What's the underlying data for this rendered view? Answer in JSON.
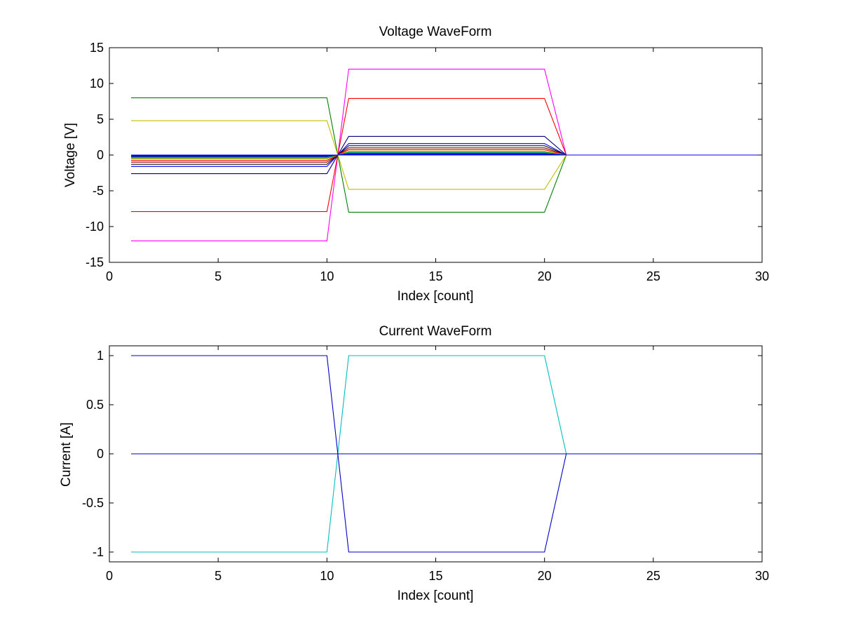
{
  "chart_data": [
    {
      "type": "line",
      "title": "Voltage WaveForm",
      "xlabel": "Index [count]",
      "ylabel": "Voltage [V]",
      "xlim": [
        0,
        30
      ],
      "ylim": [
        -15,
        15
      ],
      "xticks": [
        "0",
        "5",
        "10",
        "15",
        "20",
        "25",
        "30"
      ],
      "yticks": [
        "-15",
        "-10",
        "-5",
        "0",
        "5",
        "10",
        "15"
      ],
      "x": [
        1,
        10,
        10.5,
        11,
        20,
        21,
        30
      ],
      "grid": false,
      "series": [
        {
          "color": "#FF00FF",
          "values": [
            -12,
            -12,
            0,
            12,
            12,
            0,
            0
          ]
        },
        {
          "color": "#FF0000",
          "values": [
            -7.9,
            -7.9,
            0,
            7.9,
            7.9,
            0,
            0
          ]
        },
        {
          "color": "#008000",
          "values": [
            8,
            8,
            0,
            -8,
            -8,
            0,
            0
          ]
        },
        {
          "color": "#BFBF00",
          "values": [
            4.8,
            4.8,
            0,
            -4.8,
            -4.8,
            0,
            0
          ]
        },
        {
          "color": "#000080",
          "values": [
            -2.6,
            -2.6,
            0,
            2.6,
            2.6,
            0,
            0
          ]
        },
        {
          "color": "#0000FF",
          "values": [
            -1.6,
            -1.6,
            0,
            1.6,
            1.6,
            0,
            0
          ]
        },
        {
          "color": "#000000",
          "values": [
            -1.3,
            -1.3,
            0,
            1.3,
            1.3,
            0,
            0
          ]
        },
        {
          "color": "#800000",
          "values": [
            -1.0,
            -1.0,
            0,
            1.0,
            1.0,
            0,
            0
          ]
        },
        {
          "color": "#FF0000",
          "values": [
            -0.75,
            -0.75,
            0,
            0.75,
            0.75,
            0,
            0
          ]
        },
        {
          "color": "#BFBF00",
          "values": [
            -0.55,
            -0.55,
            0,
            0.55,
            0.55,
            0,
            0
          ]
        },
        {
          "color": "#008000",
          "values": [
            -0.4,
            -0.4,
            0,
            0.4,
            0.4,
            0,
            0
          ]
        },
        {
          "color": "#00BFBF",
          "values": [
            -0.3,
            -0.3,
            0,
            0.3,
            0.3,
            0,
            0
          ]
        },
        {
          "color": "#000080",
          "values": [
            -0.2,
            -0.2,
            0,
            0.2,
            0.2,
            0,
            0
          ]
        },
        {
          "color": "#0000FF",
          "values": [
            -0.1,
            -0.1,
            0,
            0.1,
            0.1,
            0,
            0
          ]
        },
        {
          "color": "#0000FF",
          "values": [
            0,
            0,
            0,
            0,
            0,
            0,
            0
          ]
        }
      ]
    },
    {
      "type": "line",
      "title": "Current WaveForm",
      "xlabel": "Index [count]",
      "ylabel": "Current [A]",
      "xlim": [
        0,
        30
      ],
      "ylim": [
        -1.1,
        1.1
      ],
      "xticks": [
        "0",
        "5",
        "10",
        "15",
        "20",
        "25",
        "30"
      ],
      "yticks": [
        "-1",
        "-0.5",
        "0",
        "0.5",
        "1"
      ],
      "x": [
        1,
        10,
        10.5,
        11,
        20,
        21,
        30
      ],
      "grid": false,
      "series": [
        {
          "color": "#00BFBF",
          "values": [
            -1,
            -1,
            0,
            1,
            1,
            0,
            0
          ]
        },
        {
          "color": "#0000C8",
          "values": [
            1,
            1,
            0,
            -1,
            -1,
            0,
            0
          ]
        },
        {
          "color": "#0000C8",
          "values": [
            0,
            0,
            0,
            0,
            0,
            0,
            0
          ]
        }
      ]
    }
  ]
}
